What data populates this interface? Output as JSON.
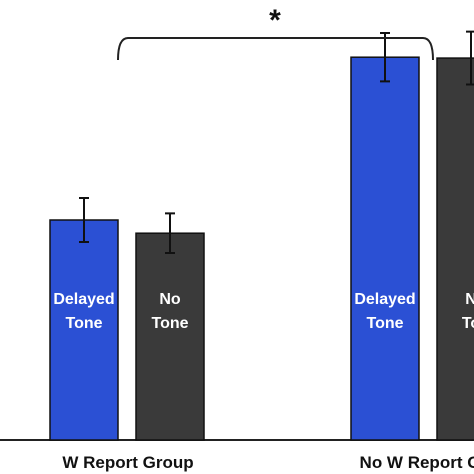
{
  "chart_data": {
    "type": "bar",
    "title": "",
    "xlabel": "",
    "ylabel": "",
    "ylim": [
      0,
      100
    ],
    "grid": false,
    "groups": [
      {
        "label": "W Report Group",
        "bars": [
          {
            "label_lines": [
              "Delayed",
              "Tone"
            ],
            "value": 50,
            "error": 5,
            "color": "#2b50d4"
          },
          {
            "label_lines": [
              "No",
              "Tone"
            ],
            "value": 47,
            "error": 4.5,
            "color": "#3a3a3a"
          }
        ]
      },
      {
        "label": "No W Report G",
        "bars": [
          {
            "label_lines": [
              "Delayed",
              "Tone"
            ],
            "value": 87,
            "error": 5.5,
            "color": "#2b50d4"
          },
          {
            "label_lines": [
              "N",
              "To"
            ],
            "value": 86.8,
            "error": 6,
            "color": "#3a3a3a"
          }
        ]
      }
    ],
    "significance": {
      "symbol": "*",
      "between_groups": [
        0,
        1
      ]
    }
  }
}
